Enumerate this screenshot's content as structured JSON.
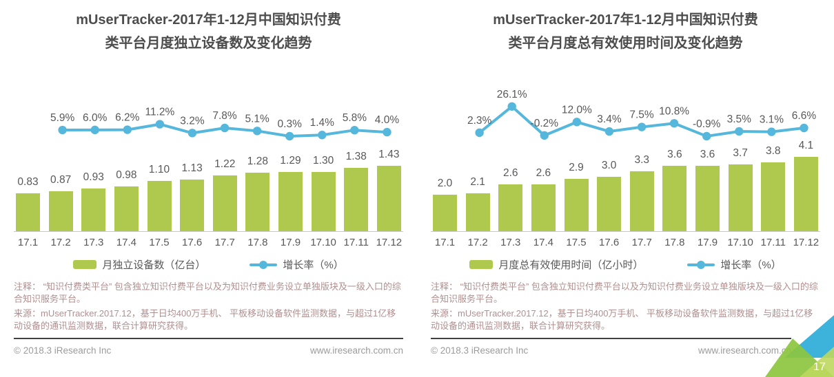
{
  "page": {
    "page_number": "17"
  },
  "footer": {
    "copyright": "© 2018.3 iResearch Inc",
    "website": "www.iresearch.com.cn"
  },
  "notes": {
    "line1": "注释： “知识付费类平台” 包含独立知识付费平台以及为知识付费业务设立单独版块及一级入口的综合知识服务平台。",
    "line2": "来源：mUserTracker.2017.12，基于日均400万手机、 平板移动设备软件监测数据，与超过1亿移动设备的通讯监测数据，联合计算研究获得。"
  },
  "colors": {
    "bar": "#aec94e",
    "line": "#56b7dc",
    "title_text": "#4d4d4d",
    "label_text": "#595757",
    "note_text": "#b18f8f",
    "footer_text": "#9b9b9b",
    "axis_line": "#c9c9c9",
    "corner_blue": "#3db3dc",
    "corner_green": "#8cc63f",
    "corner_lime": "#bdd75f"
  },
  "chart_data": [
    {
      "type": "bar",
      "combo": "bar+line",
      "title_line1": "mUserTracker-2017年1-12月中国知识付费",
      "title_line2": "类平台月度独立设备数及变化趋势",
      "categories": [
        "17.1",
        "17.2",
        "17.3",
        "17.4",
        "17.5",
        "17.6",
        "17.7",
        "17.8",
        "17.9",
        "17.10",
        "17.11",
        "17.12"
      ],
      "series": [
        {
          "name": "月独立设备数（亿台）",
          "type": "bar",
          "values": [
            0.83,
            0.87,
            0.93,
            0.98,
            1.1,
            1.13,
            1.22,
            1.28,
            1.29,
            1.3,
            1.38,
            1.43
          ],
          "labels": [
            "0.83",
            "0.87",
            "0.93",
            "0.98",
            "1.10",
            "1.13",
            "1.22",
            "1.28",
            "1.29",
            "1.30",
            "1.38",
            "1.43"
          ]
        },
        {
          "name": "增长率（%）",
          "type": "line",
          "start_category": "17.2",
          "values": [
            5.9,
            6.0,
            6.2,
            11.2,
            3.2,
            7.8,
            5.1,
            0.3,
            1.4,
            5.8,
            4.0
          ],
          "labels": [
            "5.9%",
            "6.0%",
            "6.2%",
            "11.2%",
            "3.2%",
            "7.8%",
            "5.1%",
            "0.3%",
            "1.4%",
            "5.8%",
            "4.0%"
          ]
        }
      ],
      "legend": [
        "月独立设备数（亿台）",
        "增长率（%）"
      ],
      "legend_position": "bottom",
      "grid": false,
      "xlabel": "",
      "ylabel": ""
    },
    {
      "type": "bar",
      "combo": "bar+line",
      "title_line1": "mUserTracker-2017年1-12月中国知识付费",
      "title_line2": "类平台月度总有效使用时间及变化趋势",
      "categories": [
        "17.1",
        "17.2",
        "17.3",
        "17.4",
        "17.5",
        "17.6",
        "17.7",
        "17.8",
        "17.9",
        "17.10",
        "17.11",
        "17.12"
      ],
      "series": [
        {
          "name": "月度总有效使用时间（亿小时）",
          "type": "bar",
          "values": [
            2.0,
            2.1,
            2.6,
            2.6,
            2.9,
            3.0,
            3.3,
            3.6,
            3.6,
            3.7,
            3.8,
            4.1
          ],
          "labels": [
            "2.0",
            "2.1",
            "2.6",
            "2.6",
            "2.9",
            "3.0",
            "3.3",
            "3.6",
            "3.6",
            "3.7",
            "3.8",
            "4.1"
          ]
        },
        {
          "name": "增长率（%）",
          "type": "line",
          "start_category": "17.2",
          "values": [
            2.3,
            26.1,
            -0.2,
            12.0,
            3.4,
            7.5,
            10.8,
            -0.9,
            3.5,
            3.1,
            6.6
          ],
          "labels": [
            "2.3%",
            "26.1%",
            "-0.2%",
            "12.0%",
            "3.4%",
            "7.5%",
            "10.8%",
            "-0.9%",
            "3.5%",
            "3.1%",
            "6.6%"
          ]
        }
      ],
      "legend": [
        "月度总有效使用时间（亿小时）",
        "增长率（%）"
      ],
      "legend_position": "bottom",
      "grid": false,
      "xlabel": "",
      "ylabel": ""
    }
  ]
}
